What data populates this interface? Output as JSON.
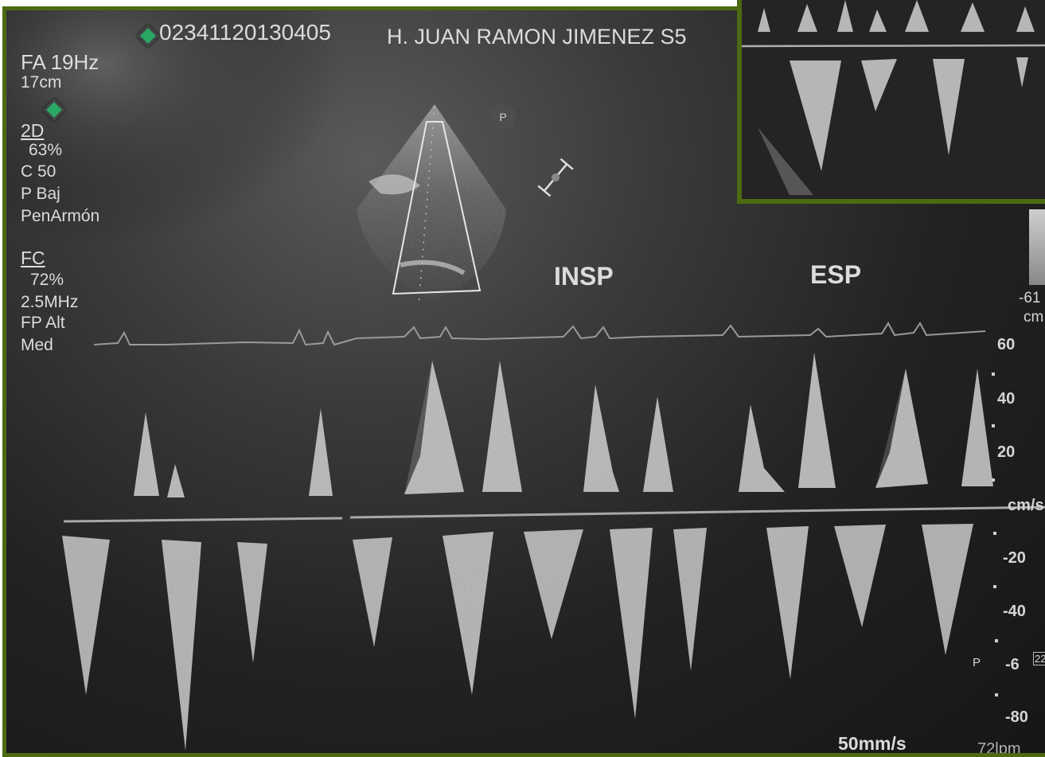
{
  "header": {
    "exam_id": "02341120130405",
    "institution": "H. JUAN RAMON JIMENEZ  S5"
  },
  "settings_2d": {
    "frame_rate": "FA 19Hz",
    "depth": "17cm",
    "mode": "2D",
    "gain": "63%",
    "compression": "C 50",
    "power": "P Baj",
    "harmonic": "PenArmón"
  },
  "settings_pw": {
    "mode": "FC",
    "gain": "72%",
    "frequency": "2.5MHz",
    "filter": "FP Alt",
    "level": "Med"
  },
  "annotations": {
    "insp": "INSP",
    "esp": "ESP",
    "probe_marker": "P",
    "p_marker": "P",
    "color_scale_value": "-61",
    "color_scale_unit": "cm"
  },
  "velocity_scale": {
    "unit": "cm/s",
    "ticks": [
      "60",
      "40",
      "20",
      "-20",
      "-40",
      "-6",
      "-80"
    ],
    "edge_fragment": "22"
  },
  "footer": {
    "sweep_speed": "50mm/s",
    "heart_rate": "72lpm"
  },
  "colors": {
    "frame_border": "#4b6a12",
    "screen_background": "#1c1c1c",
    "spectrum": "#d8d8d8",
    "marker_green": "#2aa866"
  },
  "icons": {
    "marker_left_top": "green-gem-icon",
    "marker_left_mid": "green-gem-icon",
    "probe": "probe-orientation-icon"
  }
}
